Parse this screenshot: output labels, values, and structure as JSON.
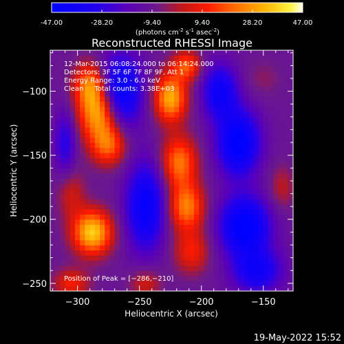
{
  "chart_data": {
    "type": "heatmap",
    "title": "Reconstructed RHESSI Image",
    "xlabel": "Heliocentric X (arcsec)",
    "ylabel": "Heliocentric Y (arcsec)",
    "xlim": [
      -322,
      -126
    ],
    "ylim": [
      -256,
      -68
    ],
    "xticks": [
      -300,
      -250,
      -200,
      -150
    ],
    "yticks": [
      -100,
      -150,
      -200,
      -250
    ],
    "xtick_labels": [
      "−300",
      "−250",
      "−200",
      "−150"
    ],
    "ytick_labels": [
      "−100",
      "−150",
      "−200",
      "−250"
    ],
    "colorbar": {
      "min": -47.0,
      "max": 47.0,
      "tick_labels": [
        "-47.00",
        "-28.20",
        "-9.40",
        "9.40",
        "28.20",
        "47.00"
      ],
      "units_parts": [
        "(photons cm",
        "-2",
        " s",
        "-1",
        " asec",
        "-2",
        ")"
      ]
    },
    "annotations": [
      "12-Mar-2015 06:08:24.000 to 06:14:24.000",
      "Detectors: 3F 5F 6F 7F 8F 9F, Att 1",
      "Energy Range: 3.0 - 6.0 keV",
      "Clean     Total counts: 3.38E+03"
    ],
    "peak_text": "Position of Peak = [−286,−210]",
    "peak_position": [
      -286,
      -210
    ],
    "blobs": [
      {
        "x": -290,
        "y": -95,
        "amp": 34,
        "sx": 9,
        "sy": 12
      },
      {
        "x": -283,
        "y": -118,
        "amp": 40,
        "sx": 11,
        "sy": 14
      },
      {
        "x": -275,
        "y": -142,
        "amp": 30,
        "sx": 10,
        "sy": 11
      },
      {
        "x": -288,
        "y": -210,
        "amp": 47,
        "sx": 11,
        "sy": 12
      },
      {
        "x": -305,
        "y": -180,
        "amp": 14,
        "sx": 8,
        "sy": 14
      },
      {
        "x": -305,
        "y": -250,
        "amp": 20,
        "sx": 10,
        "sy": 8
      },
      {
        "x": -225,
        "y": -105,
        "amp": 42,
        "sx": 9,
        "sy": 13
      },
      {
        "x": -212,
        "y": -80,
        "amp": 28,
        "sx": 8,
        "sy": 8
      },
      {
        "x": -218,
        "y": -155,
        "amp": 33,
        "sx": 10,
        "sy": 14
      },
      {
        "x": -212,
        "y": -190,
        "amp": 34,
        "sx": 10,
        "sy": 13
      },
      {
        "x": -208,
        "y": -225,
        "amp": 20,
        "sx": 10,
        "sy": 12
      },
      {
        "x": -245,
        "y": -250,
        "amp": 15,
        "sx": 9,
        "sy": 8
      },
      {
        "x": -135,
        "y": -175,
        "amp": 12,
        "sx": 7,
        "sy": 12
      },
      {
        "x": -150,
        "y": -90,
        "amp": 6,
        "sx": 10,
        "sy": 10
      },
      {
        "x": -265,
        "y": -100,
        "amp": -36,
        "sx": 12,
        "sy": 20
      },
      {
        "x": -245,
        "y": -190,
        "amp": -35,
        "sx": 11,
        "sy": 24
      },
      {
        "x": -170,
        "y": -140,
        "amp": -40,
        "sx": 12,
        "sy": 18
      },
      {
        "x": -165,
        "y": -205,
        "amp": -42,
        "sx": 14,
        "sy": 16
      },
      {
        "x": -185,
        "y": -100,
        "amp": -30,
        "sx": 10,
        "sy": 15
      },
      {
        "x": -155,
        "y": -240,
        "amp": -28,
        "sx": 14,
        "sy": 12
      },
      {
        "x": -310,
        "y": -140,
        "amp": -20,
        "sx": 6,
        "sy": 18
      }
    ],
    "background": -10
  },
  "timestamp": "19-May-2022 15:52"
}
